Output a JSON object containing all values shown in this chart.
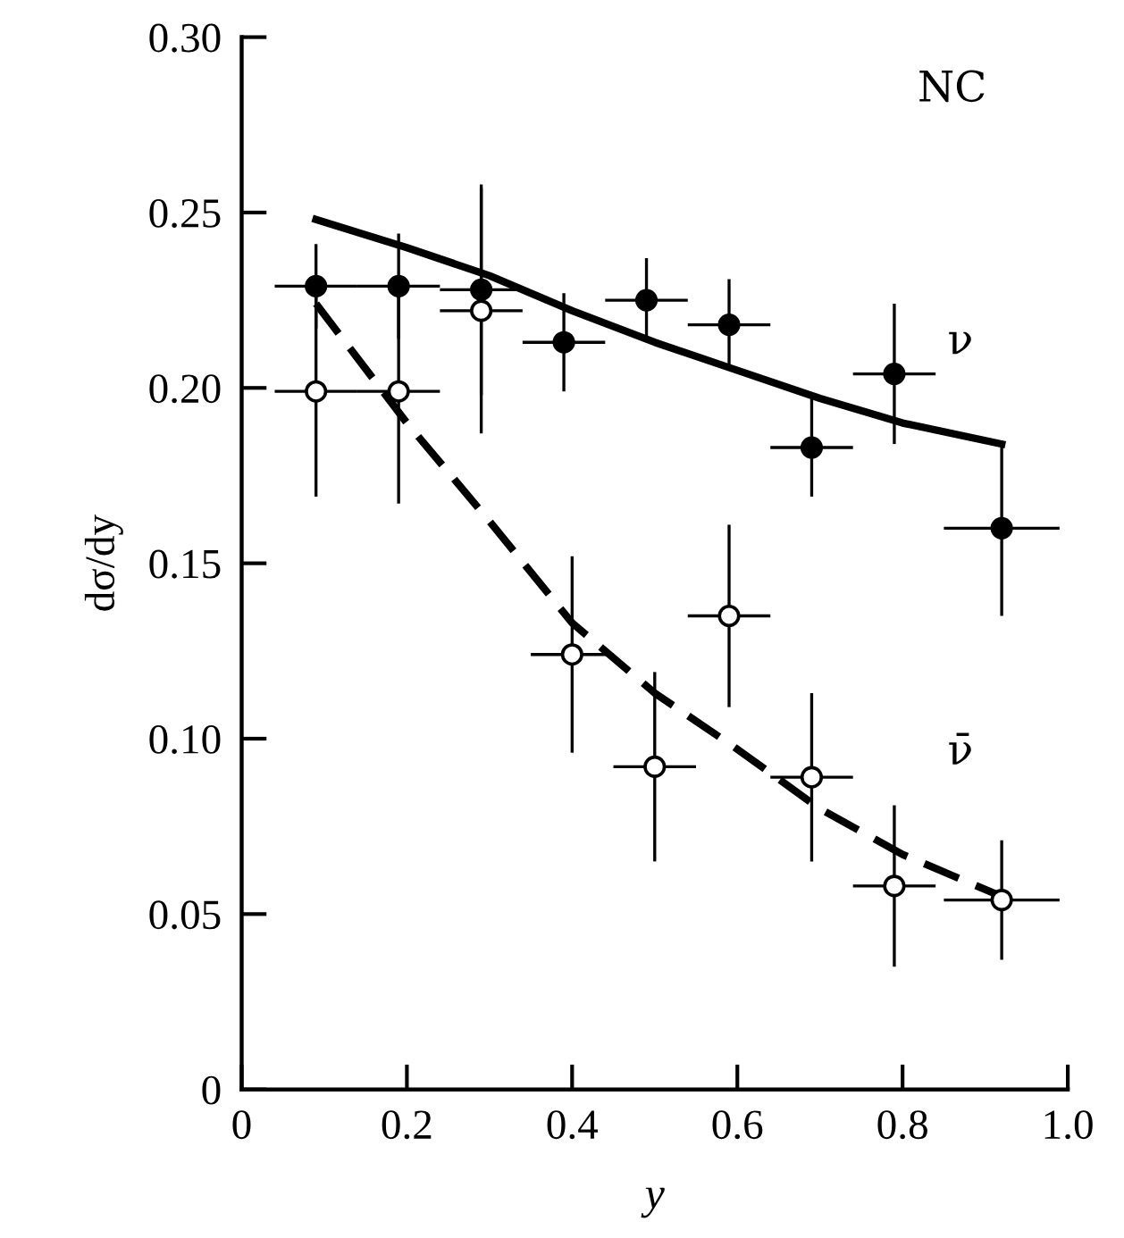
{
  "chart_data": {
    "type": "scatter",
    "xlabel": "y",
    "ylabel": "dσ/dy",
    "xlim": [
      0,
      1.0
    ],
    "ylim": [
      0,
      0.3
    ],
    "xticks": [
      0,
      0.2,
      0.4,
      0.6,
      0.8,
      {
        "value": 1.0,
        "label": "1.0"
      }
    ],
    "yticks": [
      0,
      {
        "value": 0.05,
        "label": "0.05"
      },
      {
        "value": 0.1,
        "label": "0.10"
      },
      {
        "value": 0.15,
        "label": "0.15"
      },
      {
        "value": 0.2,
        "label": "0.20"
      },
      {
        "value": 0.25,
        "label": "0.25"
      },
      {
        "value": 0.3,
        "label": "0.30"
      }
    ],
    "grid": false,
    "legend": false,
    "marker": "circle",
    "series": [
      {
        "color": "#000000",
        "x": [
          0.09,
          0.19,
          0.29,
          0.39,
          0.49,
          0.59,
          0.69,
          0.79,
          0.92
        ],
        "values": [
          0.229,
          0.229,
          0.228,
          0.213,
          0.225,
          0.218,
          0.183,
          0.204,
          0.16
        ],
        "errors": [
          0.012,
          0.015,
          0.03,
          0.014,
          0.012,
          0.013,
          0.014,
          0.02,
          0.025
        ],
        "xerrors": [
          0.05,
          0.05,
          0.05,
          0.05,
          0.05,
          0.05,
          0.05,
          0.05,
          0.07
        ]
      },
      {
        "color": "#000000",
        "x": [
          0.09,
          0.19,
          0.29,
          0.4,
          0.5,
          0.59,
          0.69,
          0.79,
          0.92
        ],
        "values": [
          0.199,
          0.199,
          0.222,
          0.124,
          0.092,
          0.135,
          0.089,
          0.058,
          0.054
        ],
        "errors": [
          0.03,
          0.032,
          0.035,
          0.028,
          0.027,
          0.026,
          0.024,
          0.023,
          0.017
        ],
        "xerrors": [
          0.05,
          0.05,
          0.05,
          0.05,
          0.05,
          0.05,
          0.05,
          0.05,
          0.07
        ]
      },
      {
        "type": "line",
        "color": "#000000",
        "line_style": "solid",
        "marker": "none",
        "x": [
          0.09,
          0.2,
          0.3,
          0.4,
          0.5,
          0.6,
          0.7,
          0.8,
          0.92
        ],
        "values": [
          0.248,
          0.24,
          0.232,
          0.222,
          0.213,
          0.205,
          0.197,
          0.19,
          0.184
        ]
      },
      {
        "type": "line",
        "color": "#000000",
        "line_style": "dashed",
        "marker": "none",
        "x": [
          0.09,
          0.2,
          0.3,
          0.4,
          0.5,
          0.6,
          0.7,
          0.8,
          0.92
        ],
        "values": [
          0.224,
          0.19,
          0.162,
          0.133,
          0.113,
          0.097,
          0.08,
          0.067,
          0.055
        ]
      }
    ],
    "annotations": [
      "NC",
      "ν",
      "ν̄"
    ]
  }
}
